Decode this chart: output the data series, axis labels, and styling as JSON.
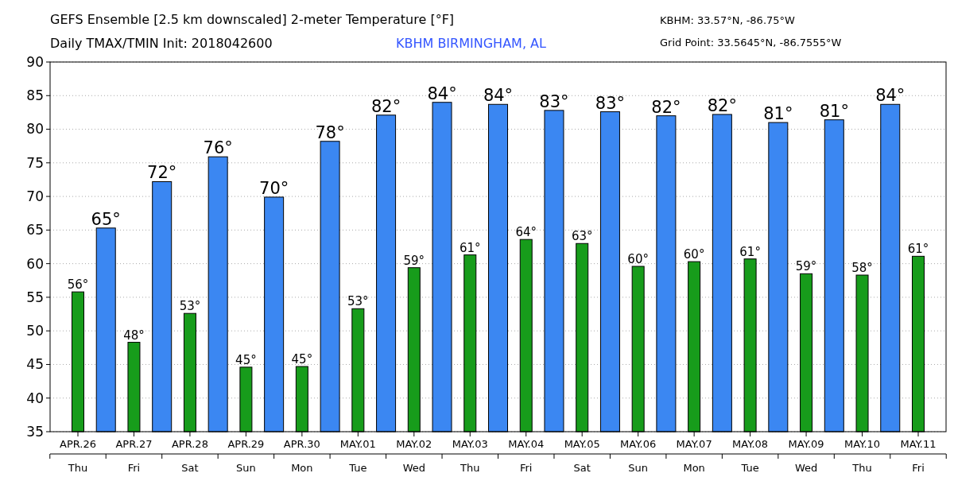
{
  "chart_data": {
    "type": "bar",
    "title": "GEFS Ensemble [2.5 km downscaled] 2-meter Temperature [°F]",
    "subtitle": "Daily TMAX/TMIN Init: 2018042600",
    "annotations": [
      "KBHM BIRMINGHAM, AL",
      "KBHM: 33.57°N, -86.75°W",
      "Grid Point: 33.5645°N, -86.7555°W"
    ],
    "categories": [
      "APR.26\nThu",
      null,
      "APR.27\nFri",
      null,
      "APR.28\nSat",
      null,
      "APR.29\nSun",
      null,
      "APR.30\nMon",
      null,
      "MAY.01\nTue",
      null,
      "MAY.02\nWed",
      null,
      "MAY.03\nThu",
      null,
      "MAY.04\nFri",
      null,
      "MAY.05\nSat",
      null,
      "MAY.06\nSun",
      null,
      "MAY.07\nMon",
      null,
      "MAY.08\nTue",
      null,
      "MAY.09\nWed",
      null,
      "MAY.10\nThu",
      null,
      "MAY.11\nFri"
    ],
    "series": [
      {
        "color": "#3b87f2",
        "values": [
          null,
          65.3,
          null,
          72.2,
          null,
          75.9,
          null,
          69.9,
          null,
          78.2,
          null,
          82.1,
          null,
          84.0,
          null,
          83.7,
          null,
          82.8,
          null,
          82.6,
          null,
          82.0,
          null,
          82.2,
          null,
          81.0,
          null,
          81.4,
          null,
          83.7,
          null
        ],
        "value_labels": [
          null,
          "65°",
          null,
          "72°",
          null,
          "76°",
          null,
          "70°",
          null,
          "78°",
          null,
          "82°",
          null,
          "84°",
          null,
          "84°",
          null,
          "83°",
          null,
          "83°",
          null,
          "82°",
          null,
          "82°",
          null,
          "81°",
          null,
          "81°",
          null,
          "84°",
          null
        ]
      },
      {
        "color": "#179c1b",
        "values": [
          55.8,
          null,
          48.3,
          null,
          52.6,
          null,
          44.6,
          null,
          44.7,
          null,
          53.3,
          null,
          59.4,
          null,
          61.3,
          null,
          63.6,
          null,
          63.0,
          null,
          59.6,
          null,
          60.3,
          null,
          60.7,
          null,
          58.5,
          null,
          58.3,
          null,
          61.1
        ],
        "value_labels": [
          "56°",
          null,
          "48°",
          null,
          "53°",
          null,
          "45°",
          null,
          "45°",
          null,
          "53°",
          null,
          "59°",
          null,
          "61°",
          null,
          "64°",
          null,
          "63°",
          null,
          "60°",
          null,
          "60°",
          null,
          "61°",
          null,
          "59°",
          null,
          "58°",
          null,
          "61°"
        ]
      }
    ],
    "ylim": [
      35,
      90
    ],
    "yticks": [
      35,
      40,
      45,
      50,
      55,
      60,
      65,
      70,
      75,
      80,
      85,
      90
    ],
    "grid": "y"
  }
}
